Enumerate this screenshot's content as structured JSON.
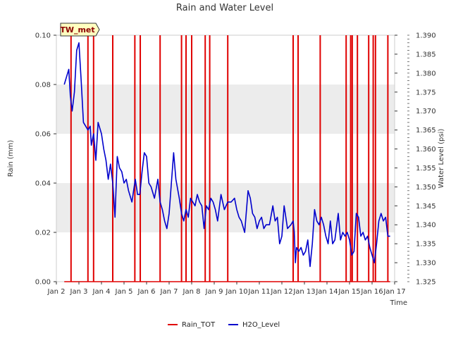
{
  "chart_data": {
    "type": "line",
    "title": "Rain and Water Level",
    "badge": "TW_met",
    "xlabel": "Time",
    "ylabel_left": "Rain (mm)",
    "ylabel_right": "Water Level (psi)",
    "x_ticks": [
      "Jan 2",
      "Jan 3",
      "Jan 4",
      "Jan 5",
      "Jan 6",
      "Jan 7",
      "Jan 8",
      "Jan 9",
      "Jan 10",
      "Jan 11",
      "Jan 12",
      "Jan 13",
      "Jan 14",
      "Jan 15",
      "Jan 16",
      "Jan 17"
    ],
    "xlim": [
      0,
      15
    ],
    "ylim_left": [
      0,
      0.1
    ],
    "ylim_right": [
      1.325,
      1.39
    ],
    "y_ticks_left": [
      "0.00",
      "0.02",
      "0.04",
      "0.06",
      "0.08",
      "0.10"
    ],
    "y_ticks_right": [
      "1.325",
      "1.330",
      "1.335",
      "1.340",
      "1.345",
      "1.350",
      "1.355",
      "1.360",
      "1.365",
      "1.370",
      "1.375",
      "1.380",
      "1.385",
      "1.390"
    ],
    "legend": [
      "Rain_TOT",
      "H2O_Level"
    ],
    "legend_placement": "bottom-center",
    "grid_bands": true,
    "colors": {
      "rain": "#e00000",
      "h2o": "#0000cc",
      "band": "#ececec",
      "badge_bg": "#ffffc0"
    },
    "series": [
      {
        "name": "Rain_TOT",
        "axis": "left",
        "x": [
          0.65,
          1.4,
          1.65,
          2.5,
          3.48,
          3.72,
          4.6,
          5.55,
          5.75,
          6.0,
          6.6,
          6.8,
          7.6,
          10.5,
          10.72,
          11.7,
          12.85,
          13.05,
          13.12,
          13.35,
          13.85,
          14.05,
          14.15,
          14.7
        ],
        "values": [
          0.1,
          0.1,
          0.1,
          0.1,
          0.1,
          0.1,
          0.1,
          0.1,
          0.1,
          0.1,
          0.1,
          0.1,
          0.1,
          0.1,
          0.1,
          0.1,
          0.1,
          0.1,
          0.1,
          0.1,
          0.1,
          0.1,
          0.1,
          0.1
        ]
      },
      {
        "name": "H2O_Level",
        "axis": "right",
        "x": [
          0.35,
          0.45,
          0.55,
          0.62,
          0.7,
          0.8,
          0.9,
          1.0,
          1.1,
          1.2,
          1.3,
          1.4,
          1.5,
          1.55,
          1.65,
          1.75,
          1.85,
          2.0,
          2.1,
          2.2,
          2.3,
          2.4,
          2.5,
          2.6,
          2.7,
          2.8,
          2.9,
          3.0,
          3.1,
          3.2,
          3.35,
          3.5,
          3.6,
          3.7,
          3.8,
          3.9,
          4.0,
          4.1,
          4.2,
          4.35,
          4.5,
          4.6,
          4.7,
          4.8,
          4.9,
          5.0,
          5.1,
          5.2,
          5.3,
          5.45,
          5.55,
          5.65,
          5.75,
          5.85,
          5.95,
          6.05,
          6.15,
          6.25,
          6.35,
          6.45,
          6.55,
          6.65,
          6.75,
          6.85,
          6.95,
          7.05,
          7.15,
          7.3,
          7.45,
          7.6,
          7.75,
          7.9,
          8.0,
          8.1,
          8.2,
          8.35,
          8.5,
          8.6,
          8.7,
          8.8,
          8.9,
          9.0,
          9.1,
          9.2,
          9.3,
          9.45,
          9.6,
          9.7,
          9.8,
          9.9,
          10.0,
          10.1,
          10.25,
          10.4,
          10.5,
          10.55,
          10.6,
          10.65,
          10.75,
          10.85,
          10.95,
          11.05,
          11.15,
          11.25,
          11.35,
          11.45,
          11.55,
          11.65,
          11.75,
          11.85,
          11.95,
          12.05,
          12.15,
          12.25,
          12.35,
          12.5,
          12.6,
          12.7,
          12.8,
          12.9,
          13.0,
          13.1,
          13.2,
          13.3,
          13.4,
          13.5,
          13.6,
          13.7,
          13.8,
          13.9,
          14.0,
          14.1,
          14.2,
          14.3,
          14.4,
          14.5,
          14.6,
          14.7,
          14.8
        ],
        "values": [
          1.377,
          1.379,
          1.381,
          1.374,
          1.37,
          1.375,
          1.386,
          1.388,
          1.378,
          1.367,
          1.366,
          1.365,
          1.366,
          1.361,
          1.364,
          1.357,
          1.367,
          1.364,
          1.36,
          1.357,
          1.352,
          1.356,
          1.351,
          1.342,
          1.358,
          1.355,
          1.354,
          1.351,
          1.352,
          1.349,
          1.346,
          1.352,
          1.348,
          1.348,
          1.354,
          1.359,
          1.358,
          1.351,
          1.35,
          1.347,
          1.352,
          1.346,
          1.344,
          1.341,
          1.339,
          1.343,
          1.351,
          1.359,
          1.352,
          1.347,
          1.343,
          1.341,
          1.344,
          1.342,
          1.347,
          1.346,
          1.345,
          1.348,
          1.346,
          1.345,
          1.339,
          1.345,
          1.344,
          1.347,
          1.346,
          1.344,
          1.341,
          1.348,
          1.344,
          1.346,
          1.346,
          1.347,
          1.344,
          1.342,
          1.341,
          1.338,
          1.349,
          1.347,
          1.343,
          1.342,
          1.339,
          1.341,
          1.342,
          1.339,
          1.34,
          1.34,
          1.345,
          1.341,
          1.342,
          1.335,
          1.337,
          1.345,
          1.339,
          1.34,
          1.341,
          1.338,
          1.33,
          1.334,
          1.333,
          1.334,
          1.332,
          1.333,
          1.336,
          1.329,
          1.335,
          1.344,
          1.341,
          1.34,
          1.342,
          1.34,
          1.337,
          1.335,
          1.341,
          1.335,
          1.336,
          1.343,
          1.336,
          1.338,
          1.337,
          1.338,
          1.336,
          1.332,
          1.333,
          1.343,
          1.342,
          1.337,
          1.338,
          1.336,
          1.337,
          1.334,
          1.332,
          1.33,
          1.335,
          1.341,
          1.343,
          1.341,
          1.342,
          1.337,
          1.337
        ]
      }
    ]
  }
}
